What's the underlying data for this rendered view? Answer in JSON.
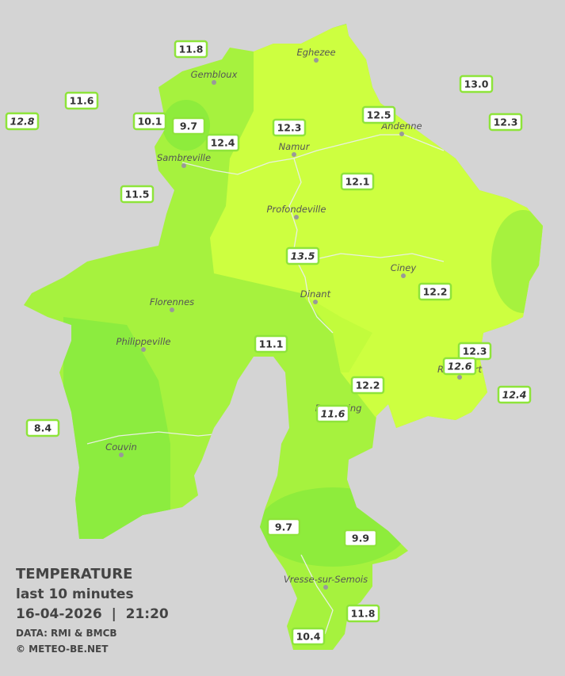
{
  "legend": {
    "title": "TEMPERATURE",
    "subtitle": "last 10 minutes",
    "timestamp": "16-04-2026  |  21:20",
    "source": "DATA: RMI & BMCB",
    "copyright": "© METEO-BE.NET"
  },
  "cities": [
    "Eghezee",
    "Gembloux",
    "Andenne",
    "Namur",
    "Sambreville",
    "Profondeville",
    "Ciney",
    "Dinant",
    "Florennes",
    "Philippeville",
    "Rochefort",
    "Beauraing",
    "Couvin",
    "Vresse-sur-Semois"
  ],
  "stations": [
    "11.8",
    "11.6",
    "12.8",
    "10.1",
    "9.7",
    "12.4",
    "12.3",
    "12.5",
    "13.0",
    "12.3",
    "11.5",
    "12.1",
    "13.5",
    "12.2",
    "11.1",
    "12.3",
    "12.6",
    "12.4",
    "12.2",
    "11.6",
    "8.4",
    "9.7",
    "9.9",
    "11.8",
    "10.4"
  ]
}
